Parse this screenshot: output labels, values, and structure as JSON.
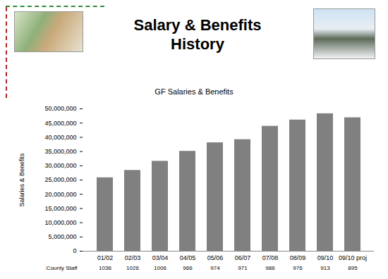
{
  "chart_data": {
    "type": "bar",
    "title": "Salary & Benefits\nHistory",
    "subtitle": "GF Salaries & Benefits",
    "y_label": "Salaries & Benefits",
    "categories": [
      "01/02",
      "02/03",
      "03/04",
      "04/05",
      "05/06",
      "06/07",
      "07/08",
      "08/09",
      "09/10",
      "09/10 proj"
    ],
    "values": [
      25800000,
      28400000,
      31600000,
      35100000,
      38100000,
      39200000,
      43900000,
      46100000,
      48300000,
      46900000
    ],
    "color": "#808080",
    "ylim": [
      0,
      50000000
    ],
    "yticks": [
      0,
      {
        "value": 5000000,
        "label": "5,000,000"
      },
      {
        "value": 10000000,
        "label": "10,000,000"
      },
      {
        "value": 15000000,
        "label": "15,000,000"
      },
      {
        "value": 20000000,
        "label": "20,000,000"
      },
      {
        "value": 25000000,
        "label": "25,000,000"
      },
      {
        "value": 30000000,
        "label": "30,000,000"
      },
      {
        "value": 35000000,
        "label": "35,000,000"
      },
      {
        "value": 40000000,
        "label": "40,000,000"
      },
      {
        "value": 45000000,
        "label": "45,000,000"
      },
      {
        "value": 50000000,
        "label": "50,000,000"
      }
    ],
    "grid": false,
    "table_row": {
      "label": "County Staff",
      "values": [
        1036,
        1026,
        1006,
        966,
        974,
        971,
        986,
        976,
        913,
        895
      ]
    }
  }
}
